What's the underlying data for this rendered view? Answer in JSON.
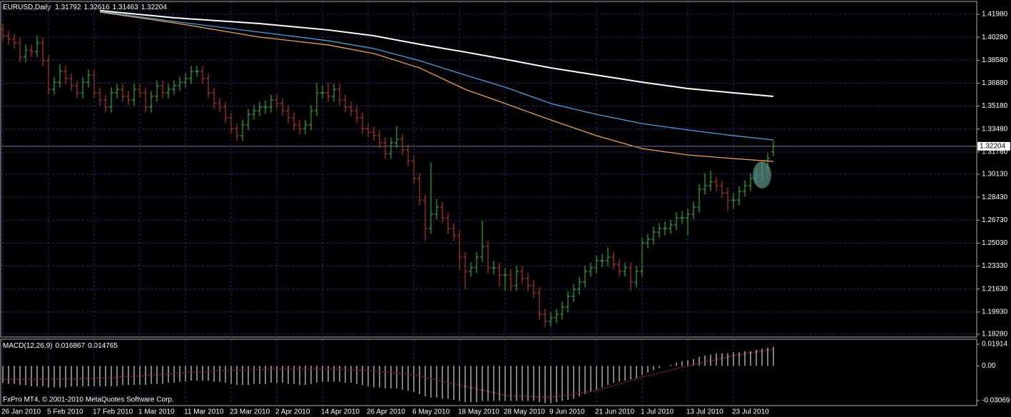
{
  "chart_data": {
    "type": "ohlc",
    "title": "EURUSD,Daily",
    "categories": [
      "26 Jan 2010",
      null,
      null,
      null,
      null,
      null,
      null,
      null,
      "5 Feb 2010",
      null,
      null,
      null,
      null,
      null,
      null,
      null,
      "17 Feb 2010",
      null,
      null,
      null,
      null,
      null,
      null,
      null,
      "1 Mar 2010",
      null,
      null,
      null,
      null,
      null,
      null,
      null,
      "11 Mar 2010",
      null,
      null,
      null,
      null,
      null,
      null,
      null,
      "23 Mar 2010",
      null,
      null,
      null,
      null,
      null,
      null,
      null,
      "2 Apr 2010",
      null,
      null,
      null,
      null,
      null,
      null,
      null,
      "14 Apr 2010",
      null,
      null,
      null,
      null,
      null,
      null,
      null,
      "26 Apr 2010",
      null,
      null,
      null,
      null,
      null,
      null,
      null,
      "6 May 2010",
      null,
      null,
      null,
      null,
      null,
      null,
      null,
      "18 May 2010",
      null,
      null,
      null,
      null,
      null,
      null,
      null,
      "28 May 2010",
      null,
      null,
      null,
      null,
      null,
      null,
      null,
      "9 Jun 2010",
      null,
      null,
      null,
      null,
      null,
      null,
      null,
      "21 Jun 2010",
      null,
      null,
      null,
      null,
      null,
      null,
      null,
      "1 Jul 2010",
      null,
      null,
      null,
      null,
      null,
      null,
      null,
      "13 Jul 2010",
      null,
      null,
      null,
      null,
      null,
      null,
      null,
      "23 Jul 2010",
      null,
      null,
      null,
      null,
      null,
      null,
      null
    ],
    "ohlc": [
      [
        1.409,
        1.413,
        1.3999,
        1.4039
      ],
      [
        1.4039,
        1.4079,
        1.3973,
        1.4013
      ],
      [
        1.4013,
        1.4053,
        1.3946,
        1.3986
      ],
      [
        1.3986,
        1.4026,
        1.3841,
        1.3881
      ],
      [
        1.3881,
        1.3973,
        1.3841,
        1.3933
      ],
      [
        1.3933,
        1.3973,
        1.3882,
        1.3922
      ],
      [
        1.3922,
        1.404,
        1.3882,
        1.3986
      ],
      [
        1.3986,
        1.4026,
        1.3814,
        1.3854
      ],
      [
        1.3854,
        1.3894,
        1.3602,
        1.3642
      ],
      [
        1.3642,
        1.3735,
        1.3602,
        1.3695
      ],
      [
        1.3695,
        1.383,
        1.3655,
        1.3775
      ],
      [
        1.3775,
        1.3815,
        1.3682,
        1.3722
      ],
      [
        1.3722,
        1.3762,
        1.3629,
        1.3669
      ],
      [
        1.3669,
        1.3709,
        1.3576,
        1.3616
      ],
      [
        1.3616,
        1.3735,
        1.3576,
        1.3695
      ],
      [
        1.3695,
        1.3788,
        1.3655,
        1.3748
      ],
      [
        1.3748,
        1.3788,
        1.3576,
        1.3616
      ],
      [
        1.3616,
        1.3656,
        1.3523,
        1.3563
      ],
      [
        1.3563,
        1.3603,
        1.347,
        1.351
      ],
      [
        1.351,
        1.3656,
        1.347,
        1.3616
      ],
      [
        1.3616,
        1.3682,
        1.3576,
        1.3642
      ],
      [
        1.3642,
        1.3682,
        1.355,
        1.359
      ],
      [
        1.359,
        1.363,
        1.3523,
        1.3563
      ],
      [
        1.3563,
        1.3682,
        1.3523,
        1.3642
      ],
      [
        1.3642,
        1.3682,
        1.3576,
        1.3616
      ],
      [
        1.3616,
        1.3656,
        1.347,
        1.351
      ],
      [
        1.351,
        1.363,
        1.347,
        1.359
      ],
      [
        1.359,
        1.3709,
        1.355,
        1.3669
      ],
      [
        1.3669,
        1.3709,
        1.3576,
        1.3616
      ],
      [
        1.3616,
        1.3682,
        1.3576,
        1.3642
      ],
      [
        1.3642,
        1.3709,
        1.3602,
        1.3669
      ],
      [
        1.3669,
        1.3735,
        1.3629,
        1.3695
      ],
      [
        1.3695,
        1.3762,
        1.3655,
        1.3722
      ],
      [
        1.3722,
        1.3815,
        1.3682,
        1.3775
      ],
      [
        1.3775,
        1.3815,
        1.3735,
        1.3775
      ],
      [
        1.3775,
        1.3815,
        1.3682,
        1.3722
      ],
      [
        1.3722,
        1.3762,
        1.3576,
        1.3616
      ],
      [
        1.3616,
        1.3656,
        1.3497,
        1.3537
      ],
      [
        1.3537,
        1.3577,
        1.347,
        1.351
      ],
      [
        1.351,
        1.355,
        1.3391,
        1.3431
      ],
      [
        1.3431,
        1.3471,
        1.3311,
        1.3351
      ],
      [
        1.3351,
        1.3391,
        1.3259,
        1.3299
      ],
      [
        1.3299,
        1.3418,
        1.3259,
        1.3378
      ],
      [
        1.3378,
        1.3497,
        1.3338,
        1.3457
      ],
      [
        1.3457,
        1.3524,
        1.3417,
        1.3484
      ],
      [
        1.3484,
        1.355,
        1.3444,
        1.351
      ],
      [
        1.351,
        1.356,
        1.346,
        1.351
      ],
      [
        1.351,
        1.3603,
        1.347,
        1.3563
      ],
      [
        1.3563,
        1.3603,
        1.3497,
        1.3537
      ],
      [
        1.3537,
        1.3577,
        1.3444,
        1.3484
      ],
      [
        1.3484,
        1.3524,
        1.3391,
        1.3431
      ],
      [
        1.3431,
        1.3471,
        1.3338,
        1.3378
      ],
      [
        1.3378,
        1.3418,
        1.3311,
        1.3351
      ],
      [
        1.3351,
        1.3418,
        1.3311,
        1.3378
      ],
      [
        1.3378,
        1.3524,
        1.3338,
        1.3484
      ],
      [
        1.3484,
        1.369,
        1.3444,
        1.3616
      ],
      [
        1.3616,
        1.367,
        1.3576,
        1.3616
      ],
      [
        1.3616,
        1.369,
        1.355,
        1.359
      ],
      [
        1.359,
        1.3682,
        1.355,
        1.3642
      ],
      [
        1.3642,
        1.3682,
        1.3523,
        1.3563
      ],
      [
        1.3563,
        1.3603,
        1.347,
        1.351
      ],
      [
        1.351,
        1.355,
        1.3444,
        1.3484
      ],
      [
        1.3484,
        1.3524,
        1.3391,
        1.3431
      ],
      [
        1.3431,
        1.3471,
        1.3311,
        1.3351
      ],
      [
        1.3351,
        1.3391,
        1.3285,
        1.3325
      ],
      [
        1.3325,
        1.3365,
        1.3259,
        1.3299
      ],
      [
        1.3299,
        1.3339,
        1.3206,
        1.3246
      ],
      [
        1.3246,
        1.3286,
        1.3126,
        1.3166
      ],
      [
        1.3166,
        1.3286,
        1.3126,
        1.3246
      ],
      [
        1.3246,
        1.337,
        1.3206,
        1.3272
      ],
      [
        1.3272,
        1.3312,
        1.3153,
        1.3193
      ],
      [
        1.3193,
        1.3233,
        1.3073,
        1.3113
      ],
      [
        1.3113,
        1.3153,
        1.2941,
        1.2981
      ],
      [
        1.2981,
        1.3021,
        1.2782,
        1.2822
      ],
      [
        1.2822,
        1.2862,
        1.252,
        1.2611
      ],
      [
        1.2611,
        1.31,
        1.2571,
        1.2717
      ],
      [
        1.2717,
        1.283,
        1.2677,
        1.277
      ],
      [
        1.277,
        1.281,
        1.265,
        1.269
      ],
      [
        1.269,
        1.273,
        1.2571,
        1.2611
      ],
      [
        1.2611,
        1.2651,
        1.2518,
        1.2558
      ],
      [
        1.2558,
        1.2598,
        1.23,
        1.2399
      ],
      [
        1.2399,
        1.2439,
        1.216,
        1.2294
      ],
      [
        1.2294,
        1.236,
        1.2254,
        1.232
      ],
      [
        1.232,
        1.2439,
        1.228,
        1.2399
      ],
      [
        1.2399,
        1.267,
        1.2359,
        1.2479
      ],
      [
        1.2479,
        1.2519,
        1.228,
        1.232
      ],
      [
        1.232,
        1.237,
        1.227,
        1.232
      ],
      [
        1.232,
        1.236,
        1.218,
        1.2267
      ],
      [
        1.2267,
        1.232,
        1.215,
        1.2267
      ],
      [
        1.2267,
        1.2307,
        1.2148,
        1.2188
      ],
      [
        1.2188,
        1.2334,
        1.2148,
        1.2294
      ],
      [
        1.2294,
        1.2334,
        1.2201,
        1.2241
      ],
      [
        1.2241,
        1.2281,
        1.2148,
        1.2188
      ],
      [
        1.2188,
        1.2228,
        1.2095,
        1.2135
      ],
      [
        1.2135,
        1.2175,
        1.1936,
        1.1976
      ],
      [
        1.1976,
        1.2016,
        1.188,
        1.1923
      ],
      [
        1.1923,
        1.199,
        1.1883,
        1.195
      ],
      [
        1.195,
        1.2016,
        1.191,
        1.1976
      ],
      [
        1.1976,
        1.2069,
        1.1936,
        1.2029
      ],
      [
        1.2029,
        1.2148,
        1.1989,
        1.2108
      ],
      [
        1.2108,
        1.2201,
        1.2068,
        1.2161
      ],
      [
        1.2161,
        1.2254,
        1.2121,
        1.2214
      ],
      [
        1.2214,
        1.2334,
        1.2174,
        1.2294
      ],
      [
        1.2294,
        1.236,
        1.2254,
        1.232
      ],
      [
        1.232,
        1.2413,
        1.228,
        1.2373
      ],
      [
        1.2373,
        1.2423,
        1.2323,
        1.2373
      ],
      [
        1.2373,
        1.247,
        1.2333,
        1.2399
      ],
      [
        1.2399,
        1.2439,
        1.2306,
        1.2346
      ],
      [
        1.2346,
        1.2386,
        1.2254,
        1.2294
      ],
      [
        1.2294,
        1.236,
        1.2254,
        1.232
      ],
      [
        1.232,
        1.236,
        1.215,
        1.2214
      ],
      [
        1.2214,
        1.2334,
        1.2174,
        1.2294
      ],
      [
        1.2294,
        1.2545,
        1.2254,
        1.2505
      ],
      [
        1.2505,
        1.2572,
        1.2465,
        1.2532
      ],
      [
        1.2532,
        1.2624,
        1.2492,
        1.2584
      ],
      [
        1.2584,
        1.2651,
        1.2544,
        1.2611
      ],
      [
        1.2611,
        1.2661,
        1.2561,
        1.2611
      ],
      [
        1.2611,
        1.2677,
        1.2571,
        1.2637
      ],
      [
        1.2637,
        1.273,
        1.2597,
        1.269
      ],
      [
        1.269,
        1.274,
        1.264,
        1.269
      ],
      [
        1.269,
        1.2757,
        1.256,
        1.2717
      ],
      [
        1.2717,
        1.281,
        1.2677,
        1.277
      ],
      [
        1.277,
        1.2942,
        1.273,
        1.2902
      ],
      [
        1.2902,
        1.302,
        1.2862,
        1.2928
      ],
      [
        1.2928,
        1.304,
        1.2888,
        1.2955
      ],
      [
        1.2955,
        1.2995,
        1.2888,
        1.2928
      ],
      [
        1.2928,
        1.2968,
        1.2835,
        1.2875
      ],
      [
        1.2875,
        1.2915,
        1.274,
        1.2822
      ],
      [
        1.2822,
        1.2872,
        1.276,
        1.2822
      ],
      [
        1.2822,
        1.2926,
        1.2782,
        1.2886
      ],
      [
        1.2886,
        1.2968,
        1.2846,
        1.2928
      ],
      [
        1.2928,
        1.3021,
        1.2888,
        1.2981
      ],
      [
        1.2981,
        1.3048,
        1.2941,
        1.3008
      ],
      [
        1.3008,
        1.3101,
        1.2968,
        1.3061
      ],
      [
        1.3061,
        1.3169,
        1.3021,
        1.3129
      ],
      [
        1.31792,
        1.32616,
        1.31463,
        1.32204
      ]
    ],
    "up_color": "#2ecc40",
    "down_color": "#d43a2f",
    "ylim": [
      1.1807,
      1.4288
    ],
    "yticks": [
      {
        "value": 1.4198,
        "label": "1.41980"
      },
      {
        "value": 1.4028,
        "label": "1.40280"
      },
      {
        "value": 1.3858,
        "label": "1.38580"
      },
      {
        "value": 1.3688,
        "label": "1.36880"
      },
      {
        "value": 1.3518,
        "label": "1.35180"
      },
      {
        "value": 1.3348,
        "label": "1.33480"
      },
      {
        "value": 1.3178,
        "label": "1.31780"
      },
      {
        "value": 1.3013,
        "label": "1.30130"
      },
      {
        "value": 1.2843,
        "label": "1.28430"
      },
      {
        "value": 1.2673,
        "label": "1.26730"
      },
      {
        "value": 1.2503,
        "label": "1.25030"
      },
      {
        "value": 1.2333,
        "label": "1.23330"
      },
      {
        "value": 1.2163,
        "label": "1.21630"
      },
      {
        "value": 1.1993,
        "label": "1.19930"
      },
      {
        "value": 1.1828,
        "label": "1.18280"
      }
    ],
    "grid": true,
    "grid_color": "#262683",
    "moving_averages": [
      {
        "color": "#ffffff",
        "x": [
          17,
          30,
          45,
          57,
          65,
          73,
          81,
          88,
          96,
          104,
          112,
          120,
          128,
          135
        ],
        "values": [
          1.4225,
          1.4172,
          1.4129,
          1.4082,
          1.4039,
          1.3976,
          1.3918,
          1.3865,
          1.3801,
          1.3748,
          1.3695,
          1.3648,
          1.3616,
          1.359
        ]
      },
      {
        "color": "#3ea2e8",
        "x": [
          17,
          30,
          45,
          57,
          65,
          73,
          81,
          88,
          96,
          104,
          112,
          120,
          128,
          135
        ],
        "values": [
          1.4219,
          1.4145,
          1.4066,
          1.4002,
          1.3944,
          1.3854,
          1.3748,
          1.3658,
          1.3537,
          1.3457,
          1.3388,
          1.3341,
          1.3299,
          1.3267
        ]
      },
      {
        "color": "#f0a040",
        "x": [
          17,
          30,
          45,
          57,
          65,
          73,
          81,
          88,
          96,
          104,
          112,
          120,
          128,
          135
        ],
        "values": [
          1.4214,
          1.4135,
          1.4029,
          1.3971,
          1.3907,
          1.3801,
          1.3642,
          1.3537,
          1.3415,
          1.3299,
          1.3203,
          1.3156,
          1.3129,
          1.3108
        ]
      }
    ],
    "indicator": {
      "title": "MACD(12,26,9)",
      "color": "#ffffff",
      "values": [
        -0.015,
        -0.016,
        -0.016,
        -0.017,
        -0.017,
        -0.018,
        -0.018,
        -0.018,
        -0.019,
        -0.019,
        -0.019,
        -0.019,
        -0.018,
        -0.018,
        -0.018,
        -0.018,
        -0.018,
        -0.018,
        -0.018,
        -0.018,
        -0.018,
        -0.017,
        -0.017,
        -0.017,
        -0.017,
        -0.017,
        -0.016,
        -0.016,
        -0.016,
        -0.015,
        -0.015,
        -0.014,
        -0.014,
        -0.013,
        -0.013,
        -0.013,
        -0.013,
        -0.014,
        -0.014,
        -0.015,
        -0.016,
        -0.017,
        -0.017,
        -0.017,
        -0.016,
        -0.016,
        -0.016,
        -0.015,
        -0.015,
        -0.015,
        -0.016,
        -0.016,
        -0.017,
        -0.017,
        -0.016,
        -0.015,
        -0.014,
        -0.014,
        -0.014,
        -0.014,
        -0.015,
        -0.015,
        -0.016,
        -0.017,
        -0.018,
        -0.019,
        -0.019,
        -0.02,
        -0.02,
        -0.02,
        -0.021,
        -0.022,
        -0.023,
        -0.025,
        -0.027,
        -0.028,
        -0.028,
        -0.029,
        -0.029,
        -0.03,
        -0.031,
        -0.032,
        -0.032,
        -0.032,
        -0.031,
        -0.031,
        -0.031,
        -0.031,
        -0.031,
        -0.031,
        -0.031,
        -0.031,
        -0.031,
        -0.031,
        -0.032,
        -0.033,
        -0.033,
        -0.032,
        -0.031,
        -0.03,
        -0.029,
        -0.027,
        -0.025,
        -0.023,
        -0.021,
        -0.019,
        -0.017,
        -0.015,
        -0.014,
        -0.013,
        -0.012,
        -0.011,
        -0.008,
        -0.006,
        -0.004,
        -0.002,
        0.0,
        0.001,
        0.003,
        0.004,
        0.005,
        0.006,
        0.008,
        0.009,
        0.01,
        0.011,
        0.011,
        0.011,
        0.012,
        0.012,
        0.013,
        0.013,
        0.014,
        0.015,
        0.016,
        0.016867
      ],
      "signal": {
        "color": "#d42020",
        "x": [
          0,
          8,
          16,
          24,
          32,
          40,
          48,
          56,
          64,
          72,
          80,
          88,
          96,
          104,
          112,
          120,
          128,
          135
        ],
        "values": [
          -0.012,
          -0.012,
          -0.011,
          -0.009,
          -0.006,
          -0.004,
          -0.003,
          -0.003,
          -0.004,
          -0.008,
          -0.017,
          -0.026,
          -0.028,
          -0.022,
          -0.01,
          0.0,
          0.009,
          0.014765
        ]
      },
      "ylim": [
        -0.0351,
        0.0229
      ],
      "yticks": [
        0.01914,
        {
          "value": 0,
          "label": "0.00"
        },
        -0.03069
      ]
    },
    "footer": "FxPro MT4, © 2001-2010 MetaQuotes Software Corp."
  }
}
